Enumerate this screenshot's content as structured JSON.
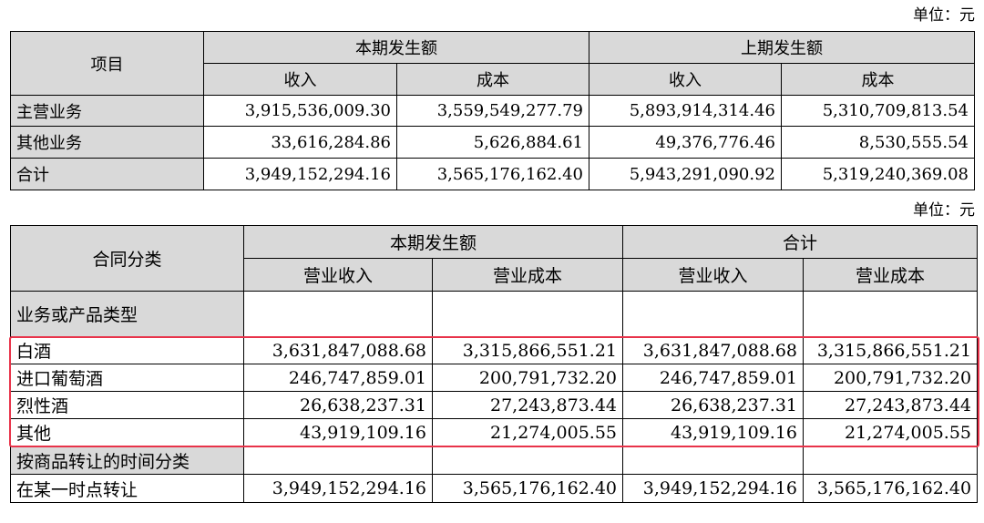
{
  "unit_label": "单位：元",
  "table1": {
    "item_header": "项目",
    "group_headers": [
      "本期发生额",
      "上期发生额"
    ],
    "sub_headers": [
      "收入",
      "成本",
      "收入",
      "成本"
    ],
    "rows": [
      {
        "label": "主营业务",
        "values": [
          "3,915,536,009.30",
          "3,559,549,277.79",
          "5,893,914,314.46",
          "5,310,709,813.54"
        ]
      },
      {
        "label": "其他业务",
        "values": [
          "33,616,284.86",
          "5,626,884.61",
          "49,376,776.46",
          "8,530,555.54"
        ]
      },
      {
        "label": "合计",
        "values": [
          "3,949,152,294.16",
          "3,565,176,162.40",
          "5,943,291,090.92",
          "5,319,240,369.08"
        ]
      }
    ]
  },
  "table2": {
    "item_header": "合同分类",
    "group_headers": [
      "本期发生额",
      "合计"
    ],
    "sub_headers": [
      "营业收入",
      "营业成本",
      "营业收入",
      "营业成本"
    ],
    "section1_label": "业务或产品类型",
    "rows": [
      {
        "label": "白酒",
        "values": [
          "3,631,847,088.68",
          "3,315,866,551.21",
          "3,631,847,088.68",
          "3,315,866,551.21"
        ]
      },
      {
        "label": "进口葡萄酒",
        "values": [
          "246,747,859.01",
          "200,791,732.20",
          "246,747,859.01",
          "200,791,732.20"
        ]
      },
      {
        "label": "烈性酒",
        "values": [
          "26,638,237.31",
          "27,243,873.44",
          "26,638,237.31",
          "27,243,873.44"
        ]
      },
      {
        "label": "其他",
        "values": [
          "43,919,109.16",
          "21,274,005.55",
          "43,919,109.16",
          "21,274,005.55"
        ]
      }
    ],
    "section2_label": "按商品转让的时间分类",
    "final_row": {
      "label": "在某一时点转让",
      "values": [
        "3,949,152,294.16",
        "3,565,176,162.40",
        "3,949,152,294.16",
        "3,565,176,162.40"
      ]
    }
  },
  "highlight_color": "#e8334a"
}
